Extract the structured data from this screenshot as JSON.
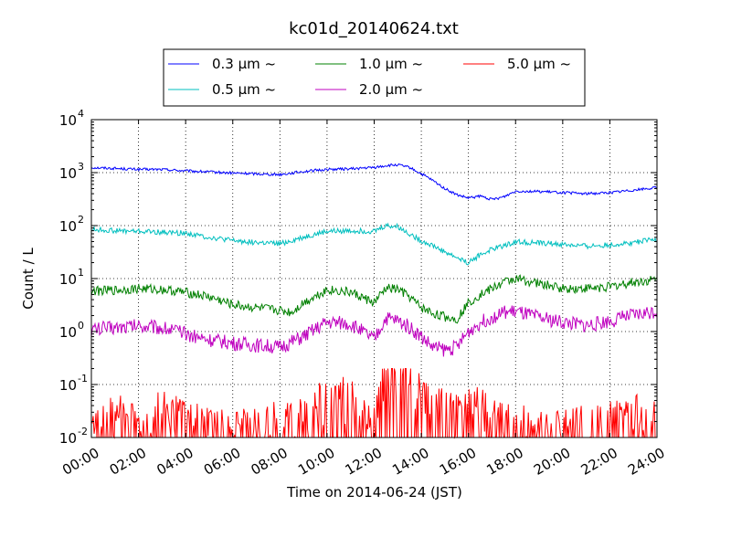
{
  "chart_data": {
    "type": "line",
    "title": "kc01d_20140624.txt",
    "xlabel": "Time on 2014-06-24 (JST)",
    "ylabel": "Count / L",
    "x_ticks": [
      "00:00",
      "02:00",
      "04:00",
      "06:00",
      "08:00",
      "10:00",
      "12:00",
      "14:00",
      "16:00",
      "18:00",
      "20:00",
      "22:00",
      "24:00"
    ],
    "x_range_hours": [
      0,
      24
    ],
    "y_scale": "log",
    "ylim": [
      0.01,
      10000
    ],
    "y_ticks": [
      {
        "base": "10",
        "exp": "-2"
      },
      {
        "base": "10",
        "exp": "-1"
      },
      {
        "base": "10",
        "exp": "0"
      },
      {
        "base": "10",
        "exp": "1"
      },
      {
        "base": "10",
        "exp": "2"
      },
      {
        "base": "10",
        "exp": "3"
      },
      {
        "base": "10",
        "exp": "4"
      }
    ],
    "grid": true,
    "legend_position": "top, above plot (3 columns)",
    "series": [
      {
        "name": "0.3 μm ~",
        "color": "#0000ff",
        "x": [
          0,
          1,
          2,
          3,
          4,
          5,
          6,
          7,
          8,
          8.5,
          9,
          10,
          11,
          12,
          12.5,
          13,
          13.5,
          14,
          14.5,
          15,
          15.5,
          16,
          16.5,
          17,
          17.5,
          18,
          19,
          20,
          21,
          22,
          23,
          24
        ],
        "y": [
          1250,
          1200,
          1150,
          1150,
          1080,
          1030,
          980,
          950,
          920,
          980,
          1050,
          1150,
          1180,
          1250,
          1350,
          1400,
          1250,
          950,
          700,
          500,
          380,
          330,
          360,
          310,
          350,
          450,
          440,
          420,
          400,
          420,
          470,
          520
        ]
      },
      {
        "name": "0.5 μm ~",
        "color": "#00bfbf",
        "x": [
          0,
          1,
          2,
          3,
          4,
          5,
          6,
          7,
          8,
          9,
          10,
          11,
          12,
          12.5,
          13,
          13.5,
          14,
          14.5,
          15,
          15.5,
          16,
          16.5,
          17,
          17.5,
          18,
          19,
          20,
          21,
          22,
          23,
          24
        ],
        "y": [
          85,
          80,
          78,
          75,
          72,
          60,
          52,
          48,
          45,
          60,
          78,
          80,
          78,
          100,
          95,
          70,
          52,
          42,
          32,
          25,
          20,
          28,
          36,
          42,
          50,
          47,
          44,
          41,
          43,
          48,
          55
        ]
      },
      {
        "name": "1.0 μm ~",
        "color": "#008000",
        "x": [
          0,
          1,
          2,
          3,
          4,
          5,
          6,
          7,
          8,
          8.5,
          9,
          10,
          11,
          12,
          12.5,
          13,
          13.5,
          14,
          14.5,
          15,
          15.5,
          16,
          16.5,
          17,
          17.5,
          18,
          19,
          20,
          21,
          22,
          23,
          24
        ],
        "y": [
          5.8,
          6.0,
          6.5,
          6.2,
          5.5,
          4.5,
          3.2,
          2.8,
          2.5,
          2.3,
          3.5,
          6.2,
          5.5,
          3.5,
          6.5,
          6.3,
          4.5,
          2.8,
          2.2,
          1.9,
          1.7,
          3.5,
          5.0,
          6.5,
          8.5,
          10,
          8,
          6.5,
          6.5,
          7,
          8.5,
          9.5
        ]
      },
      {
        "name": "2.0 μm ~",
        "color": "#bf00bf",
        "x": [
          0,
          1,
          2,
          3,
          4,
          5,
          6,
          7,
          8,
          9,
          10,
          11,
          12,
          12.5,
          13,
          13.5,
          14,
          14.5,
          15,
          15.5,
          16,
          16.5,
          17,
          17.5,
          18,
          19,
          20,
          21,
          22,
          23,
          24
        ],
        "y": [
          1.1,
          1.2,
          1.3,
          1.2,
          0.9,
          0.7,
          0.6,
          0.55,
          0.5,
          0.8,
          1.5,
          1.4,
          0.7,
          1.8,
          1.6,
          1.2,
          0.8,
          0.5,
          0.45,
          0.5,
          1.0,
          1.5,
          1.9,
          2.3,
          2.4,
          1.8,
          1.5,
          1.3,
          1.6,
          2.0,
          2.5
        ]
      },
      {
        "name": "5.0 μm ~",
        "color": "#ff0000",
        "x": [
          0,
          1,
          2,
          3,
          4,
          5,
          6,
          7,
          8,
          9,
          10,
          11,
          12,
          12.5,
          13,
          13.5,
          14,
          14.5,
          15,
          15.5,
          16,
          16.5,
          17,
          18,
          19,
          20,
          21,
          22,
          23,
          24
        ],
        "y": [
          0.012,
          0.03,
          0.015,
          0.03,
          0.02,
          0.015,
          0.012,
          0.015,
          0.02,
          0.02,
          0.06,
          0.05,
          0.015,
          0.15,
          0.12,
          0.1,
          0.06,
          0.04,
          0.03,
          0.025,
          0.03,
          0.035,
          0.02,
          0.015,
          0.018,
          0.012,
          0.02,
          0.02,
          0.025,
          0.02
        ]
      }
    ]
  }
}
